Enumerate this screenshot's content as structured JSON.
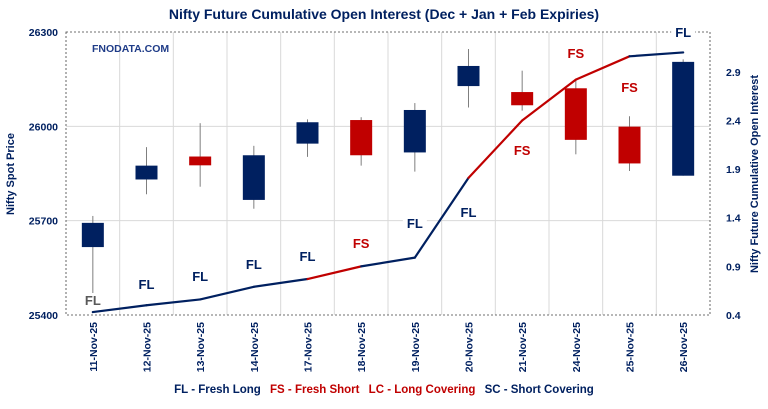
{
  "chart_data": {
    "type": "candlestick+line",
    "title": "Nifty Future Cumulative Open Interest (Dec + Jan  + Feb Expiries)",
    "watermark": "FNODATA.COM",
    "ylabel": "Nifty Spot Price",
    "y2label": "Nifty Future Cumulative Open Interest",
    "ylim": [
      25400,
      26300
    ],
    "yticks": [
      "25400",
      "25700",
      "26000",
      "26300"
    ],
    "y2lim": [
      0.4,
      3.31
    ],
    "y2ticks": [
      "0.4",
      "0.9",
      "1.4",
      "1.9",
      "2.4",
      "2.9"
    ],
    "grid": true,
    "categories": [
      "11-Nov-25",
      "12-Nov-25",
      "13-Nov-25",
      "14-Nov-25",
      "17-Nov-25",
      "18-Nov-25",
      "19-Nov-25",
      "20-Nov-25",
      "21-Nov-25",
      "24-Nov-25",
      "25-Nov-25",
      "26-Nov-25"
    ],
    "candles": [
      {
        "open": 25616,
        "high": 25715,
        "low": 25470,
        "close": 25693
      },
      {
        "open": 25831,
        "high": 25934,
        "low": 25784,
        "close": 25875
      },
      {
        "open": 25904,
        "high": 26010,
        "low": 25808,
        "close": 25876
      },
      {
        "open": 25766,
        "high": 25938,
        "low": 25738,
        "close": 25908
      },
      {
        "open": 25945,
        "high": 26022,
        "low": 25903,
        "close": 26013
      },
      {
        "open": 26020,
        "high": 26029,
        "low": 25875,
        "close": 25908
      },
      {
        "open": 25917,
        "high": 26074,
        "low": 25856,
        "close": 26052
      },
      {
        "open": 26128,
        "high": 26246,
        "low": 26060,
        "close": 26192
      },
      {
        "open": 26109,
        "high": 26177,
        "low": 26050,
        "close": 26067
      },
      {
        "open": 26121,
        "high": 26147,
        "low": 25911,
        "close": 25957
      },
      {
        "open": 25999,
        "high": 26032,
        "low": 25858,
        "close": 25882
      },
      {
        "open": 25843,
        "high": 26213,
        "low": 25843,
        "close": 26205
      }
    ],
    "open_interest": [
      0.43,
      0.5,
      0.56,
      0.69,
      0.77,
      0.9,
      0.99,
      1.81,
      2.4,
      2.82,
      3.06,
      3.1
    ],
    "position_labels": [
      "FL",
      "FL",
      "FL",
      "FL",
      "FL",
      "FS",
      "FL",
      "FL",
      "FS",
      "FS",
      "FS",
      "FL"
    ],
    "legend": [
      {
        "text": "FL - Fresh Long",
        "color": "#002060"
      },
      {
        "text": "FS - Fresh Short",
        "color": "#C00000"
      },
      {
        "text": "LC - Long Covering",
        "color": "#C00000"
      },
      {
        "text": "SC - Short Covering",
        "color": "#002060"
      }
    ],
    "legend_position": "bottom",
    "colors": {
      "up": "#002060",
      "down": "#C00000",
      "first_label": "#595959",
      "grid": "#D9D9D9",
      "axis": "#002060"
    }
  }
}
